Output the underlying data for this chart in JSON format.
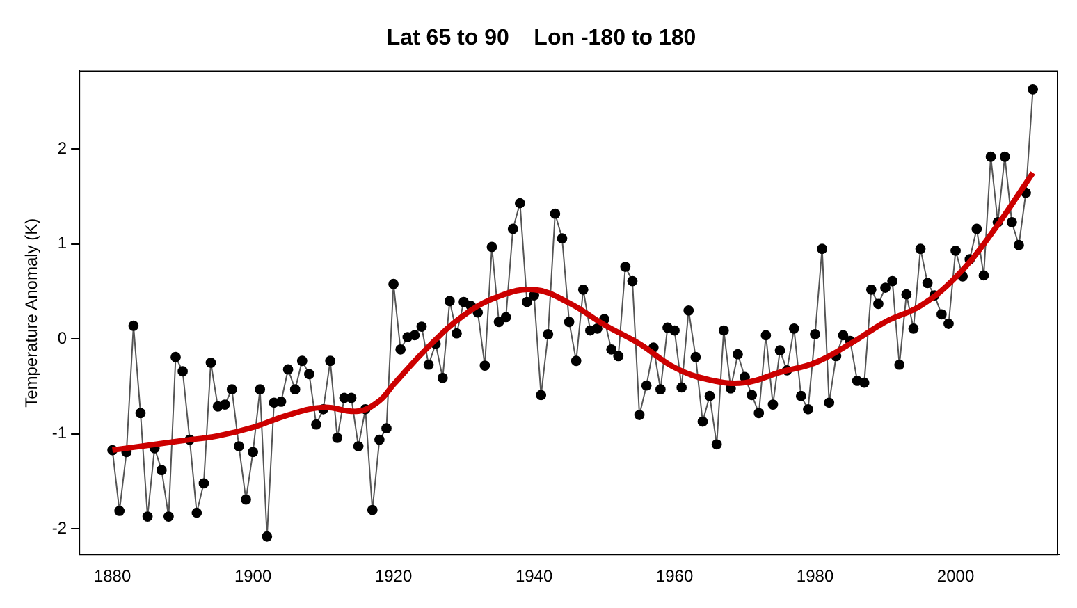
{
  "chart_data": {
    "type": "line",
    "title": "Lat 65 to 90    Lon -180 to 180",
    "ylabel": "Temperature Anomaly (K)",
    "xlim": [
      1875.3,
      2014.7
    ],
    "xticks": [
      1880,
      1900,
      1920,
      1940,
      1960,
      1980,
      2000
    ],
    "ylim": [
      -2.27,
      2.82
    ],
    "yticks": [
      -2,
      -1,
      0,
      1,
      2
    ],
    "grid": false,
    "legend": false,
    "series": [
      {
        "color": "#000000",
        "marker": "circle",
        "line_style": "solid",
        "x": [
          1880,
          1881,
          1882,
          1883,
          1884,
          1885,
          1886,
          1887,
          1888,
          1889,
          1890,
          1891,
          1892,
          1893,
          1894,
          1895,
          1896,
          1897,
          1898,
          1899,
          1900,
          1901,
          1902,
          1903,
          1904,
          1905,
          1906,
          1907,
          1908,
          1909,
          1910,
          1911,
          1912,
          1913,
          1914,
          1915,
          1916,
          1917,
          1918,
          1919,
          1920,
          1921,
          1922,
          1923,
          1924,
          1925,
          1926,
          1927,
          1928,
          1929,
          1930,
          1931,
          1932,
          1933,
          1934,
          1935,
          1936,
          1937,
          1938,
          1939,
          1940,
          1941,
          1942,
          1943,
          1944,
          1945,
          1946,
          1947,
          1948,
          1949,
          1950,
          1951,
          1952,
          1953,
          1954,
          1955,
          1956,
          1957,
          1958,
          1959,
          1960,
          1961,
          1962,
          1963,
          1964,
          1965,
          1966,
          1967,
          1968,
          1969,
          1970,
          1971,
          1972,
          1973,
          1974,
          1975,
          1976,
          1977,
          1978,
          1979,
          1980,
          1981,
          1982,
          1983,
          1984,
          1985,
          1986,
          1987,
          1988,
          1989,
          1990,
          1991,
          1992,
          1993,
          1994,
          1995,
          1996,
          1997,
          1998,
          1999,
          2000,
          2001,
          2002,
          2003,
          2004,
          2005,
          2006,
          2007,
          2008,
          2009,
          2010,
          2011
        ],
        "values": [
          -1.17,
          -1.81,
          -1.19,
          0.14,
          -0.78,
          -1.87,
          -1.15,
          -1.38,
          -1.87,
          -0.19,
          -0.34,
          -1.06,
          -1.83,
          -1.52,
          -0.25,
          -0.71,
          -0.69,
          -0.53,
          -1.13,
          -1.69,
          -1.19,
          -0.53,
          -2.08,
          -0.67,
          -0.66,
          -0.32,
          -0.53,
          -0.23,
          -0.37,
          -0.9,
          -0.74,
          -0.23,
          -1.04,
          -0.62,
          -0.62,
          -1.13,
          -0.74,
          -1.8,
          -1.06,
          -0.94,
          0.58,
          -0.11,
          0.02,
          0.04,
          0.13,
          -0.27,
          -0.05,
          -0.41,
          0.4,
          0.06,
          0.39,
          0.35,
          0.28,
          -0.28,
          0.97,
          0.18,
          0.23,
          1.16,
          1.43,
          0.39,
          0.46,
          -0.59,
          0.05,
          1.32,
          1.06,
          0.18,
          -0.23,
          0.52,
          0.09,
          0.11,
          0.21,
          -0.11,
          -0.18,
          0.76,
          0.61,
          -0.8,
          -0.49,
          -0.09,
          -0.53,
          0.12,
          0.09,
          -0.51,
          0.3,
          -0.19,
          -0.87,
          -0.6,
          -1.11,
          0.09,
          -0.52,
          -0.16,
          -0.4,
          -0.59,
          -0.78,
          0.04,
          -0.69,
          -0.12,
          -0.33,
          0.11,
          -0.6,
          -0.74,
          0.05,
          0.95,
          -0.67,
          -0.18,
          0.04,
          -0.02,
          -0.44,
          -0.46,
          0.52,
          0.37,
          0.54,
          0.61,
          -0.27,
          0.47,
          0.11,
          0.95,
          0.59,
          0.46,
          0.26,
          0.16,
          0.93,
          0.66,
          0.84,
          1.16,
          0.67,
          1.92,
          1.23,
          1.92,
          1.23,
          0.99,
          1.54,
          2.63
        ]
      },
      {
        "color": "#cc0000",
        "marker": "none",
        "line_style": "solid",
        "x": [
          1880,
          1885,
          1890,
          1895,
          1900,
          1905,
          1910,
          1915,
          1918,
          1920,
          1925,
          1930,
          1935,
          1940,
          1945,
          1950,
          1955,
          1960,
          1965,
          1970,
          1975,
          1980,
          1985,
          1990,
          1995,
          2000,
          2005,
          2011
        ],
        "values": [
          -1.17,
          -1.12,
          -1.07,
          -1.02,
          -0.93,
          -0.8,
          -0.72,
          -0.76,
          -0.65,
          -0.48,
          -0.08,
          0.25,
          0.45,
          0.52,
          0.38,
          0.15,
          -0.05,
          -0.3,
          -0.43,
          -0.46,
          -0.35,
          -0.25,
          -0.05,
          0.18,
          0.35,
          0.65,
          1.1,
          1.75
        ]
      }
    ]
  }
}
